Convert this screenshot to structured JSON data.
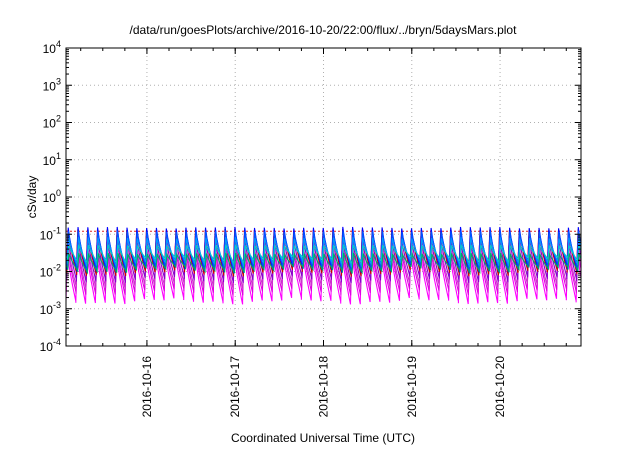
{
  "chart_data": {
    "type": "line",
    "title": "/data/run/goesPlots/archive/2016-10-20/22:00/flux/../bryn/5daysMars.plot",
    "xlabel": "Coordinated Universal Time (UTC)",
    "ylabel": "cSv/day",
    "yscale": "log",
    "ylim": [
      0.0001,
      10000
    ],
    "xlim": [
      "2016-10-15 02:00",
      "2016-10-20 22:00"
    ],
    "y_ticks": [
      {
        "base": "10",
        "exp": "-4"
      },
      {
        "base": "10",
        "exp": "-3"
      },
      {
        "base": "10",
        "exp": "-2"
      },
      {
        "base": "10",
        "exp": "-1"
      },
      {
        "base": "10",
        "exp": "0"
      },
      {
        "base": "10",
        "exp": "1"
      },
      {
        "base": "10",
        "exp": "2"
      },
      {
        "base": "10",
        "exp": "3"
      },
      {
        "base": "10",
        "exp": "4"
      }
    ],
    "x_ticks": [
      "2016-10-16",
      "2016-10-17",
      "2016-10-18",
      "2016-10-19",
      "2016-10-20"
    ],
    "grid": true,
    "sawtooth_cycles_per_day": 9,
    "series": [
      {
        "color": "#ff00ff",
        "peak": 0.035,
        "trough": 0.0016
      },
      {
        "color": "#e000e0",
        "peak": 0.05,
        "trough": 0.0028
      },
      {
        "color": "#cc33cc",
        "peak": 0.06,
        "trough": 0.004
      },
      {
        "color": "#8800cc",
        "peak": 0.09,
        "trough": 0.006
      },
      {
        "color": "#cc0000",
        "peak": 0.13,
        "trough": 0.009
      },
      {
        "color": "#0000ff",
        "peak": 0.15,
        "trough": 0.011
      },
      {
        "color": "#0055ff",
        "peak": 0.12,
        "trough": 0.013
      },
      {
        "color": "#0099ff",
        "peak": 0.08,
        "trough": 0.016
      },
      {
        "color": "#00cccc",
        "peak": 0.05,
        "trough": 0.02
      },
      {
        "color": "#00aa66",
        "peak": 0.03,
        "trough": 0.011
      }
    ],
    "threshold_line": {
      "value": 0.12,
      "color": "#dd2222"
    }
  }
}
